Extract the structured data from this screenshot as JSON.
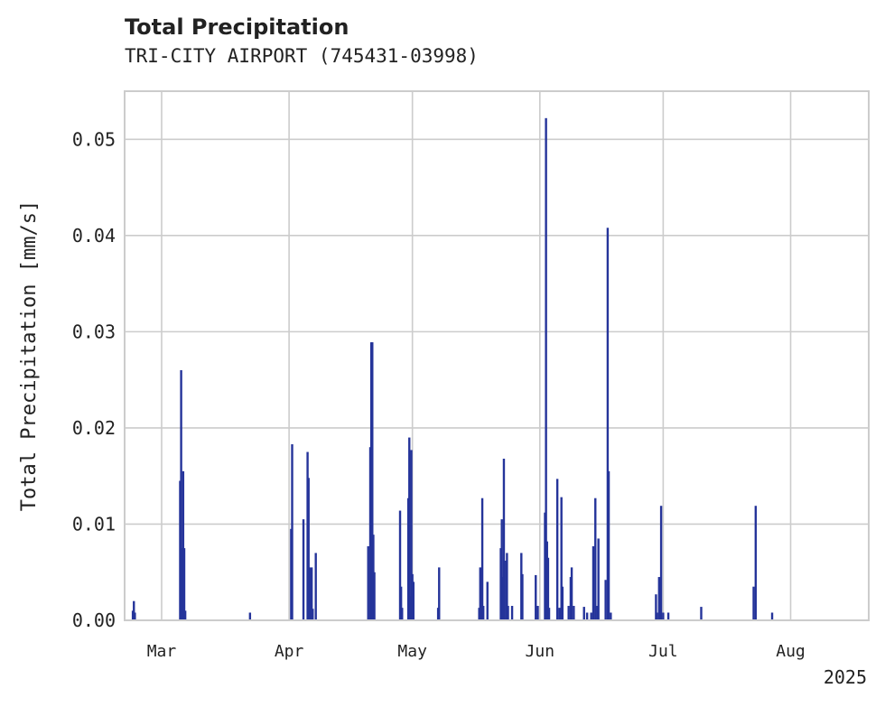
{
  "chart_data": {
    "type": "bar",
    "title": "Total Precipitation",
    "subtitle": "TRI-CITY AIRPORT (745431-03998)",
    "xlabel": "",
    "ylabel": "Total Precipitation [mm/s]",
    "xlim": [
      "2025-02-20",
      "2025-08-20"
    ],
    "ylim": [
      0,
      0.055
    ],
    "x_ticks": [
      "2025-03-01",
      "2025-04-01",
      "2025-05-01",
      "2025-06-01",
      "2025-07-01",
      "2025-08-01"
    ],
    "x_tick_labels": [
      "Mar",
      "Apr",
      "May",
      "Jun",
      "Jul",
      "Aug"
    ],
    "x_offset_label": "2025",
    "y_ticks": [
      0.0,
      0.01,
      0.02,
      0.03,
      0.04,
      0.05
    ],
    "y_tick_labels": [
      "0.00",
      "0.01",
      "0.02",
      "0.03",
      "0.04",
      "0.05"
    ],
    "grid": true,
    "color": "#25349a",
    "series": [
      {
        "x": [
          "2025-02-22T00:00",
          "2025-02-22T06:00",
          "2025-02-22T12:00",
          "2025-03-05T12:00",
          "2025-03-05T18:00",
          "2025-03-06T00:00",
          "2025-03-06T06:00",
          "2025-03-06T12:00",
          "2025-03-06T18:00",
          "2025-03-22T12:00",
          "2025-04-01T12:00",
          "2025-04-01T18:00",
          "2025-04-04T12:00",
          "2025-04-05T12:00",
          "2025-04-05T18:00",
          "2025-04-06T00:00",
          "2025-04-06T12:00",
          "2025-04-06T18:00",
          "2025-04-07T12:00",
          "2025-04-20T06:00",
          "2025-04-20T18:00",
          "2025-04-21T00:00",
          "2025-04-21T06:00",
          "2025-04-21T12:00",
          "2025-04-21T18:00",
          "2025-04-28T00:00",
          "2025-04-28T06:00",
          "2025-04-28T12:00",
          "2025-04-30T00:00",
          "2025-04-30T06:00",
          "2025-04-30T12:00",
          "2025-04-30T18:00",
          "2025-05-01T00:00",
          "2025-05-01T06:00",
          "2025-05-07T06:00",
          "2025-05-07T12:00",
          "2025-05-17T06:00",
          "2025-05-17T12:00",
          "2025-05-18T00:00",
          "2025-05-18T06:00",
          "2025-05-19T06:00",
          "2025-05-22T12:00",
          "2025-05-22T18:00",
          "2025-05-23T00:00",
          "2025-05-23T06:00",
          "2025-05-23T18:00",
          "2025-05-24T00:00",
          "2025-05-24T06:00",
          "2025-05-25T06:00",
          "2025-05-27T12:00",
          "2025-05-27T18:00",
          "2025-05-31T00:00",
          "2025-05-31T12:00",
          "2025-06-02T06:00",
          "2025-06-02T12:00",
          "2025-06-02T18:00",
          "2025-06-03T00:00",
          "2025-06-03T06:00",
          "2025-06-05T06:00",
          "2025-06-05T18:00",
          "2025-06-06T06:00",
          "2025-06-06T12:00",
          "2025-06-08T00:00",
          "2025-06-08T12:00",
          "2025-06-08T18:00",
          "2025-06-09T06:00",
          "2025-06-11T18:00",
          "2025-06-12T12:00",
          "2025-06-13T12:00",
          "2025-06-14T00:00",
          "2025-06-14T12:00",
          "2025-06-15T00:00",
          "2025-06-15T06:00",
          "2025-06-17T00:00",
          "2025-06-17T12:00",
          "2025-06-17T18:00",
          "2025-06-18T06:00",
          "2025-06-29T06:00",
          "2025-06-29T12:00",
          "2025-06-30T00:00",
          "2025-06-30T12:00",
          "2025-07-01T00:00",
          "2025-07-02T06:00",
          "2025-07-10T06:00",
          "2025-07-23T00:00",
          "2025-07-23T12:00",
          "2025-07-27T12:00"
        ],
        "values": [
          0.001,
          0.002,
          0.0008,
          0.0145,
          0.026,
          0.0075,
          0.0155,
          0.0075,
          0.001,
          0.0008,
          0.0095,
          0.0183,
          0.0105,
          0.0175,
          0.0148,
          0.0055,
          0.0055,
          0.0012,
          0.007,
          0.0077,
          0.018,
          0.0289,
          0.0289,
          0.0089,
          0.005,
          0.0114,
          0.0035,
          0.0013,
          0.0127,
          0.019,
          0.0025,
          0.0177,
          0.0048,
          0.004,
          0.0013,
          0.0055,
          0.0013,
          0.0055,
          0.0127,
          0.0015,
          0.004,
          0.0075,
          0.0105,
          0.0045,
          0.0168,
          0.0062,
          0.007,
          0.0015,
          0.0015,
          0.007,
          0.0048,
          0.0047,
          0.0015,
          0.0112,
          0.0522,
          0.0082,
          0.0065,
          0.0013,
          0.0147,
          0.0013,
          0.0128,
          0.0035,
          0.0015,
          0.0045,
          0.0055,
          0.0015,
          0.0014,
          0.0008,
          0.0008,
          0.0077,
          0.0127,
          0.0015,
          0.0085,
          0.0042,
          0.0408,
          0.0155,
          0.0008,
          0.0027,
          0.0008,
          0.0045,
          0.0119,
          0.0008,
          0.0008,
          0.0014,
          0.0035,
          0.0119,
          0.0008
        ]
      }
    ]
  }
}
